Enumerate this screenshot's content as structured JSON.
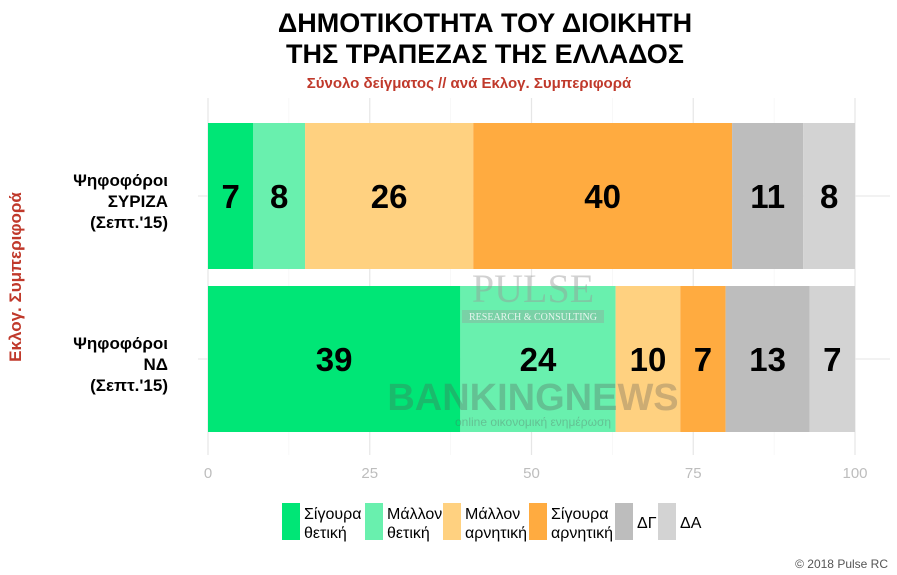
{
  "chart_data": {
    "type": "bar",
    "orientation": "horizontal",
    "stacked": true,
    "title": "ΔΗΜΟΤΙΚΟΤΗΤΑ ΤΟΥ ΔΙΟΙΚΗΤΗ\nΤΗΣ ΤΡΑΠΕΖΑΣ ΤΗΣ ΕΛΛΑΔΟΣ",
    "title_lines": [
      "ΔΗΜΟΤΙΚΟΤΗΤΑ ΤΟΥ ΔΙΟΙΚΗΤΗ",
      "ΤΗΣ ΤΡΑΠΕΖΑΣ ΤΗΣ ΕΛΛΑΔΟΣ"
    ],
    "subtitle": "Σύνολο δείγματος // ανά Εκλογ. Συμπεριφορά",
    "ylabel": "Εκλογ. Συμπεριφορά",
    "xlabel": "",
    "xlim": [
      0,
      100
    ],
    "xticks": [
      0,
      25,
      50,
      75,
      100
    ],
    "grid": true,
    "legend_position": "bottom",
    "categories": [
      [
        "Ψηφοφόροι",
        "ΣΥΡΙΖΑ",
        "(Σεπτ.'15)"
      ],
      [
        "Ψηφοφόροι",
        "ΝΔ",
        "(Σεπτ.'15)"
      ]
    ],
    "series": [
      {
        "name": "Σίγουρα θετική",
        "legend_lines": [
          "Σίγουρα",
          "θετική"
        ],
        "color": "#00E676",
        "values": [
          7,
          39
        ]
      },
      {
        "name": "Μάλλον θετική",
        "legend_lines": [
          "Μάλλον",
          "θετική"
        ],
        "color": "#69F0AE",
        "values": [
          8,
          24
        ]
      },
      {
        "name": "Μάλλον αρνητική",
        "legend_lines": [
          "Μάλλον",
          "αρνητική"
        ],
        "color": "#FFD180",
        "values": [
          26,
          10
        ]
      },
      {
        "name": "Σίγουρα αρνητική",
        "legend_lines": [
          "Σίγουρα",
          "αρνητική"
        ],
        "color": "#FFAB40",
        "values": [
          40,
          7
        ]
      },
      {
        "name": "ΔΓ",
        "legend_lines": [
          "ΔΓ"
        ],
        "color": "#BDBDBD",
        "values": [
          11,
          13
        ]
      },
      {
        "name": "ΔΑ",
        "legend_lines": [
          "ΔΑ"
        ],
        "color": "#D3D3D3",
        "values": [
          8,
          7
        ]
      }
    ]
  },
  "colors": {
    "title": "#000000",
    "subtitle": "#C0392B",
    "ylabel": "#C0392B",
    "tick": "#BDBDBD"
  },
  "watermarks": {
    "pulse": "PULSE",
    "pulse_sub": "RESEARCH & CONSULTING",
    "bankingnews": "BANKINGNEWS",
    "bankingnews_sub": "online οικονομική ενημέρωση"
  },
  "copyright": "© 2018 Pulse RC"
}
